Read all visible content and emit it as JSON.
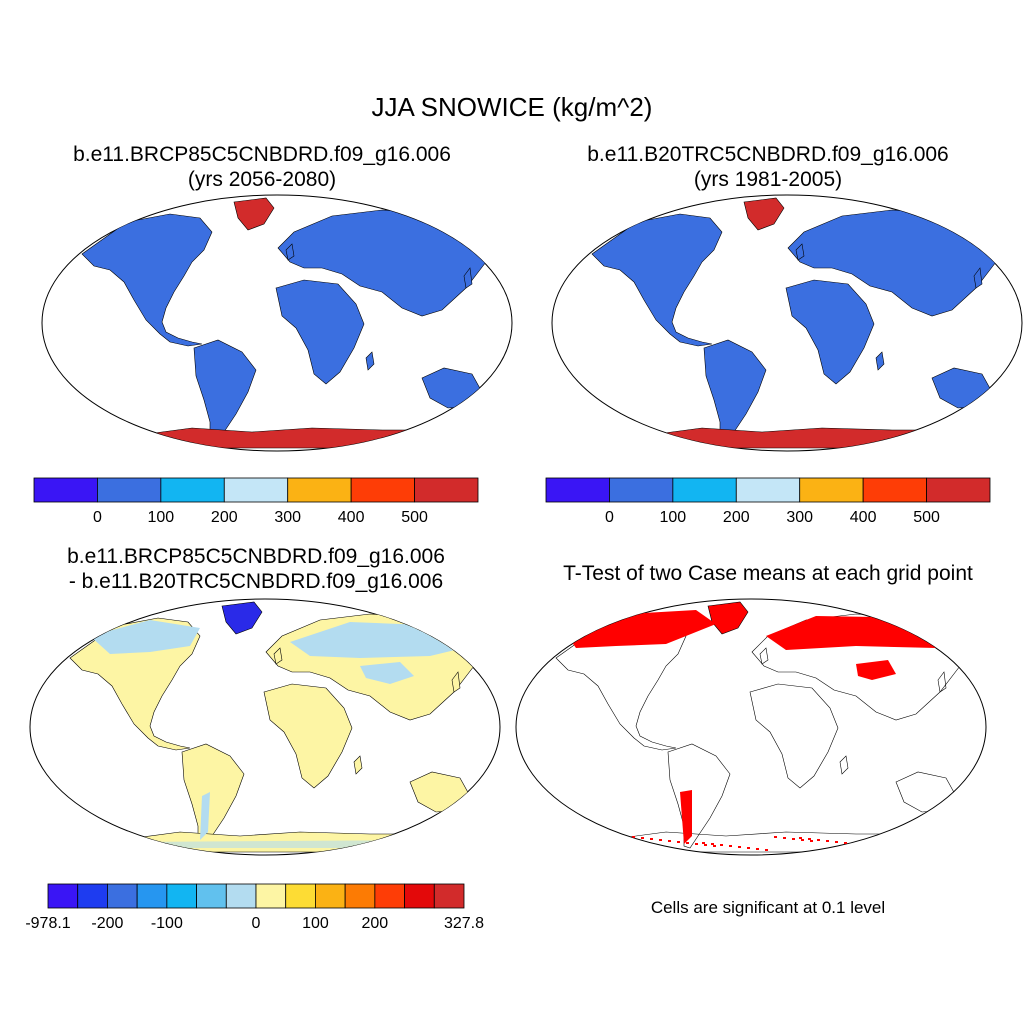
{
  "figure": {
    "title": "JJA SNOWICE (kg/m^2)"
  },
  "panels": [
    {
      "title_line1": "b.e11.BRCP85C5CNBDRD.f09_g16.006",
      "title_line2": "(yrs 2056-2080)",
      "colorbar": {
        "colors": [
          "#3a15f5",
          "#3b6fe0",
          "#12b5f2",
          "#c4e6f7",
          "#fbb214",
          "#fe3d06",
          "#d22b2b"
        ],
        "labels": [
          "0",
          "100",
          "200",
          "300",
          "400",
          "500"
        ]
      }
    },
    {
      "title_line1": "b.e11.B20TRC5CNBDRD.f09_g16.006",
      "title_line2": "(yrs 1981-2005)",
      "colorbar": {
        "colors": [
          "#3a15f5",
          "#3b6fe0",
          "#12b5f2",
          "#c4e6f7",
          "#fbb214",
          "#fe3d06",
          "#d22b2b"
        ],
        "labels": [
          "0",
          "100",
          "200",
          "300",
          "400",
          "500"
        ]
      }
    },
    {
      "title_line1": "b.e11.BRCP85C5CNBDRD.f09_g16.006",
      "title_line2": "- b.e11.B20TRC5CNBDRD.f09_g16.006",
      "colorbar": {
        "colors": [
          "#3a15f5",
          "#1e3cf0",
          "#3b6fe0",
          "#2696f0",
          "#12b5f2",
          "#61c1ee",
          "#b3dcf0",
          "#fdf5a4",
          "#fddc34",
          "#fbb214",
          "#fc7b04",
          "#fe3d06",
          "#e3090a",
          "#d22b2b"
        ],
        "labels": [
          "-978.1",
          "-200",
          "-100",
          "0",
          "100",
          "200",
          "327.8"
        ]
      }
    },
    {
      "title_line1": "T-Test of two Case means at each grid point",
      "note": "Cells are significant at 0.1 level"
    }
  ],
  "colors": {
    "land_base": "#3b6fe0",
    "greenland_antarctica": "#d22b2b",
    "diff_land": "#fdf5a4",
    "diff_high_lat": "#b3dcf0",
    "significant": "#ff0000"
  }
}
